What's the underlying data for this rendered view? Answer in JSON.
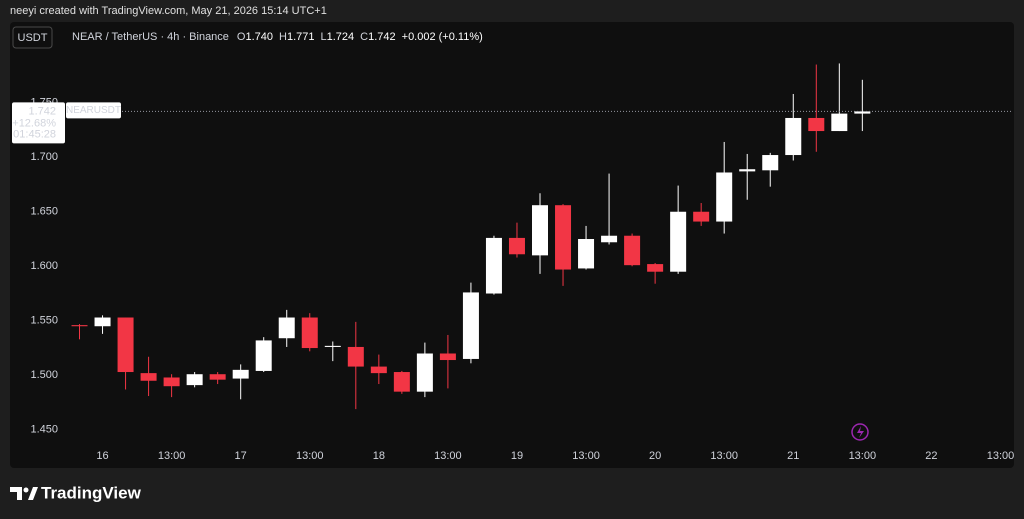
{
  "header": {
    "caption": "neeyi created with TradingView.com, May 21, 2026 15:14 UTC+1"
  },
  "footer": {
    "brand": "TradingView"
  },
  "chart_data": {
    "type": "candlestick",
    "currency_button": "USDT",
    "legend": {
      "symbol": "NEAR / TetherUS · 4h · Binance",
      "items": [
        {
          "label": "O",
          "value": "1.740"
        },
        {
          "label": "H",
          "value": "1.771"
        },
        {
          "label": "L",
          "value": "1.724"
        },
        {
          "label": "C",
          "value": "1.742"
        }
      ],
      "change": "+0.002 (+0.11%)"
    },
    "price_tag": {
      "price": 1.742,
      "change": "+12.68%",
      "countdown": "01:45:28",
      "symbol": "NEARUSDT"
    },
    "categories": [
      null,
      "16",
      null,
      null,
      "13:00",
      null,
      null,
      "17",
      null,
      null,
      "13:00",
      null,
      null,
      "18",
      null,
      null,
      "13:00",
      null,
      null,
      "19",
      null,
      null,
      "13:00",
      null,
      null,
      "20",
      null,
      null,
      "13:00",
      null,
      null,
      "21",
      null,
      null,
      "13:00",
      null,
      null,
      "22",
      null,
      null,
      "13:00"
    ],
    "open": [
      1.546,
      1.545,
      1.553,
      1.502,
      1.498,
      1.491,
      1.501,
      1.497,
      1.504,
      1.534,
      1.553,
      1.526,
      1.526,
      1.508,
      1.503,
      1.485,
      1.52,
      1.515,
      1.575,
      1.626,
      1.61,
      1.656,
      1.598,
      1.622,
      1.628,
      1.602,
      1.595,
      1.65,
      1.641,
      1.687,
      1.688,
      1.702,
      1.736,
      1.724,
      1.74,
      null,
      null,
      null,
      null,
      null,
      null
    ],
    "high": [
      1.547,
      1.555,
      1.553,
      1.517,
      1.501,
      1.503,
      1.503,
      1.51,
      1.535,
      1.56,
      1.557,
      1.531,
      1.549,
      1.519,
      1.504,
      1.53,
      1.537,
      1.585,
      1.628,
      1.64,
      1.667,
      1.657,
      1.637,
      1.685,
      1.63,
      1.603,
      1.674,
      1.658,
      1.714,
      1.703,
      1.704,
      1.758,
      1.785,
      1.786,
      1.771,
      null,
      null,
      null,
      null,
      null,
      null
    ],
    "low": [
      1.533,
      1.538,
      1.487,
      1.481,
      1.48,
      1.489,
      1.492,
      1.478,
      1.503,
      1.526,
      1.522,
      1.513,
      1.469,
      1.492,
      1.483,
      1.48,
      1.488,
      1.511,
      1.574,
      1.608,
      1.593,
      1.582,
      1.597,
      1.62,
      1.6,
      1.584,
      1.593,
      1.637,
      1.63,
      1.661,
      1.673,
      1.697,
      1.705,
      1.724,
      1.724,
      null,
      null,
      null,
      null,
      null,
      null
    ],
    "close": [
      1.545,
      1.553,
      1.503,
      1.495,
      1.49,
      1.501,
      1.496,
      1.505,
      1.532,
      1.553,
      1.525,
      1.527,
      1.508,
      1.502,
      1.485,
      1.52,
      1.514,
      1.576,
      1.626,
      1.611,
      1.656,
      1.597,
      1.625,
      1.628,
      1.601,
      1.595,
      1.65,
      1.641,
      1.686,
      1.689,
      1.702,
      1.736,
      1.724,
      1.74,
      1.742,
      null,
      null,
      null,
      null,
      null,
      null
    ],
    "up_color": "#ffffff",
    "down_color": "#f23645",
    "ylim": [
      1.437,
      1.802
    ],
    "yticks": [
      {
        "value": 1.45,
        "label": "1.450"
      },
      {
        "value": 1.5,
        "label": "1.500"
      },
      {
        "value": 1.55,
        "label": "1.550"
      },
      {
        "value": 1.6,
        "label": "1.600"
      },
      {
        "value": 1.65,
        "label": "1.650"
      },
      {
        "value": 1.7,
        "label": "1.700"
      },
      {
        "value": 1.75,
        "label": "1.750"
      }
    ],
    "grid": false
  }
}
